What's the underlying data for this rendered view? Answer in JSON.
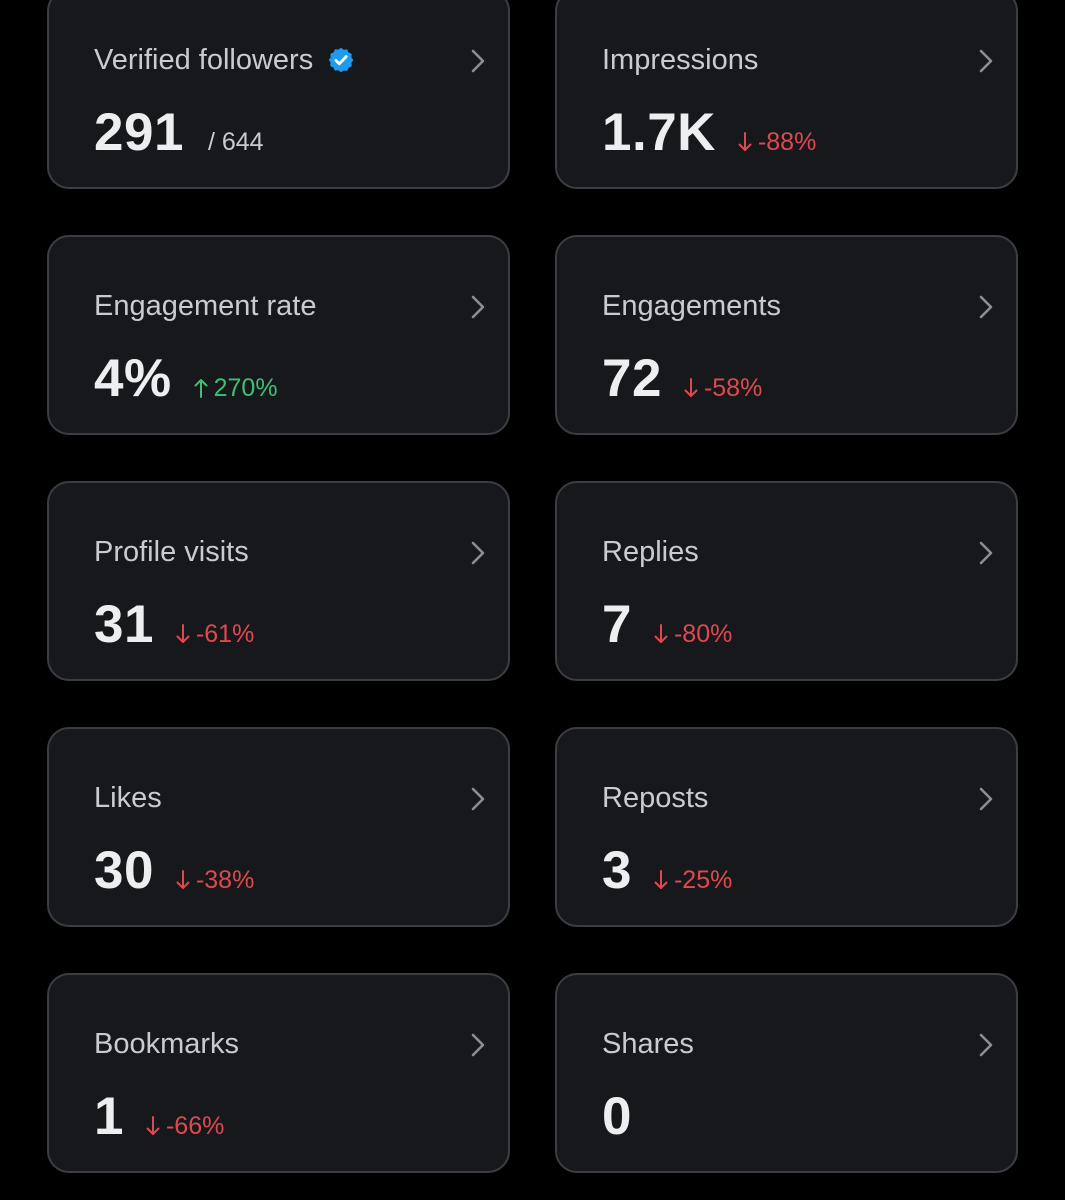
{
  "colors": {
    "background": "#000000",
    "card": "#17181c",
    "card_border": "#3a3d42",
    "negative": "#e0484e",
    "positive": "#3fbf74",
    "verified_badge": "#1d9bf0"
  },
  "cards": [
    {
      "title": "Verified followers",
      "value": "291",
      "total": "/ 644",
      "icon": "verified-badge-icon"
    },
    {
      "title": "Impressions",
      "value": "1.7K",
      "delta": "-88%",
      "trend": "down"
    },
    {
      "title": "Engagement rate",
      "value": "4%",
      "delta": "270%",
      "trend": "up"
    },
    {
      "title": "Engagements",
      "value": "72",
      "delta": "-58%",
      "trend": "down"
    },
    {
      "title": "Profile visits",
      "value": "31",
      "delta": "-61%",
      "trend": "down"
    },
    {
      "title": "Replies",
      "value": "7",
      "delta": "-80%",
      "trend": "down"
    },
    {
      "title": "Likes",
      "value": "30",
      "delta": "-38%",
      "trend": "down"
    },
    {
      "title": "Reposts",
      "value": "3",
      "delta": "-25%",
      "trend": "down"
    },
    {
      "title": "Bookmarks",
      "value": "1",
      "delta": "-66%",
      "trend": "down"
    },
    {
      "title": "Shares",
      "value": "0"
    }
  ]
}
